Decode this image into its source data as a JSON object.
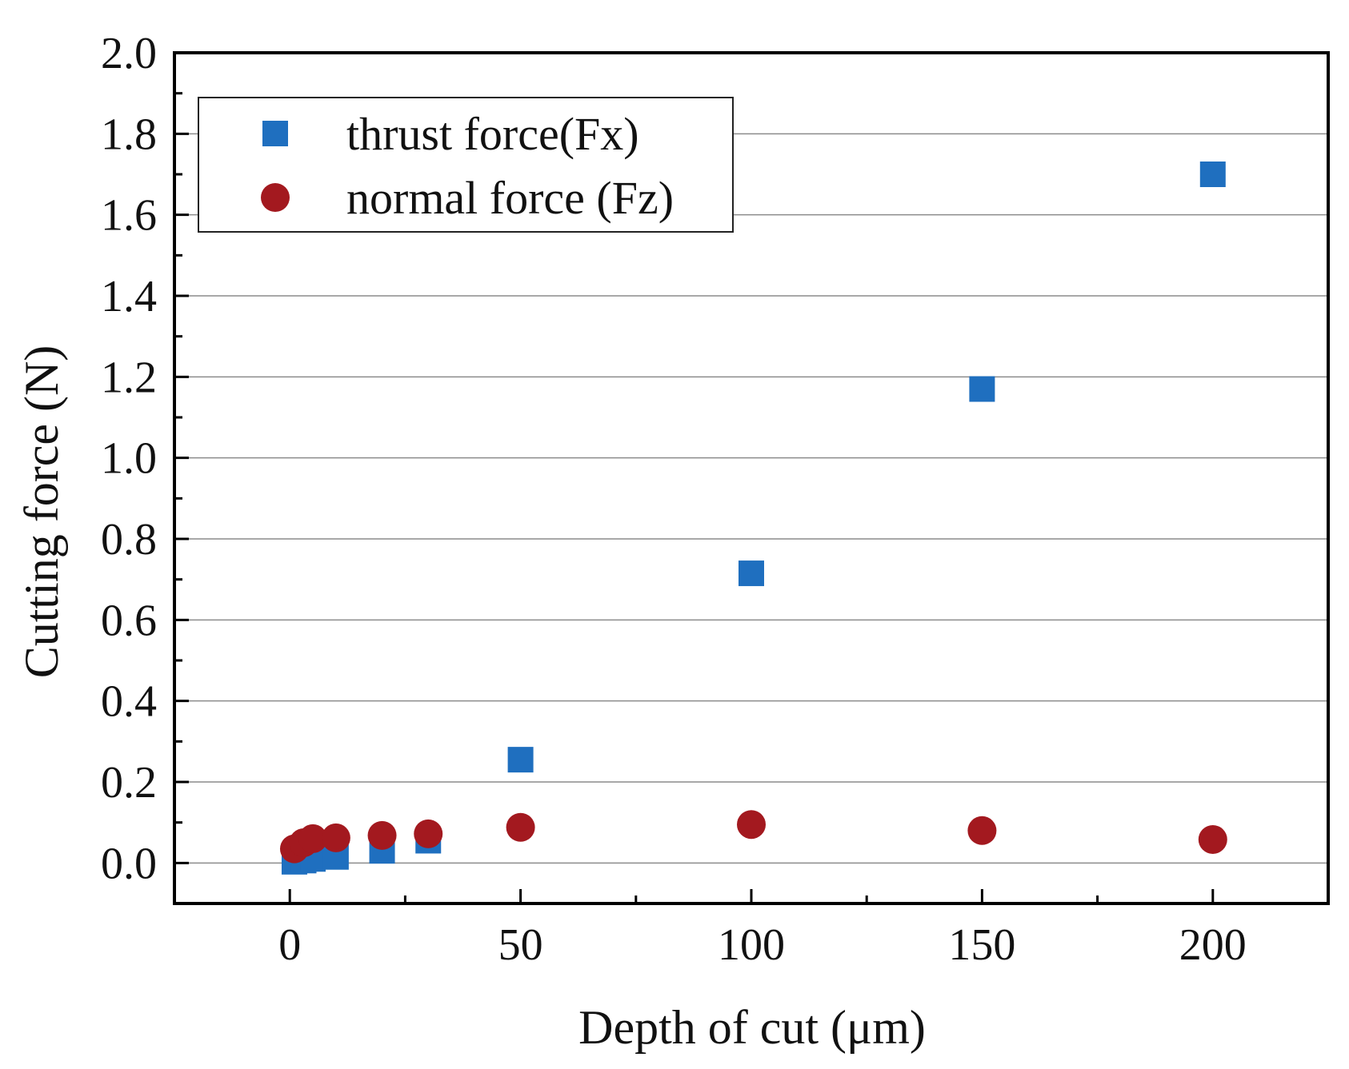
{
  "chart_data": {
    "type": "scatter",
    "title": "",
    "xlabel": "Depth of cut (μm)",
    "ylabel": "Cutting force (N)",
    "xlim": [
      -25,
      225
    ],
    "ylim": [
      -0.1,
      2.0
    ],
    "xticks": [
      0,
      50,
      100,
      150,
      200
    ],
    "xtick_labels": [
      "0",
      "50",
      "100",
      "150",
      "200"
    ],
    "yticks": [
      0.0,
      0.2,
      0.4,
      0.6,
      0.8,
      1.0,
      1.2,
      1.4,
      1.6,
      1.8,
      2.0
    ],
    "ytick_labels": [
      "0.0",
      "0.2",
      "0.4",
      "0.6",
      "0.8",
      "1.0",
      "1.2",
      "1.4",
      "1.6",
      "1.8",
      "2.0"
    ],
    "grid": "horizontal",
    "legend_position": "top-left",
    "series": [
      {
        "name": "thrust force(Fx)",
        "marker": "square",
        "color": "#1f6fbf",
        "x": [
          1,
          3,
          5,
          10,
          20,
          30,
          50,
          100,
          150,
          200
        ],
        "y": [
          0.003,
          0.006,
          0.01,
          0.015,
          0.03,
          0.055,
          0.255,
          0.715,
          1.17,
          1.7
        ]
      },
      {
        "name": "normal force (Fz)",
        "marker": "circle",
        "color": "#a3191f",
        "x": [
          1,
          3,
          5,
          10,
          20,
          30,
          50,
          100,
          150,
          200
        ],
        "y": [
          0.035,
          0.05,
          0.06,
          0.062,
          0.068,
          0.072,
          0.088,
          0.095,
          0.08,
          0.058
        ]
      }
    ]
  }
}
